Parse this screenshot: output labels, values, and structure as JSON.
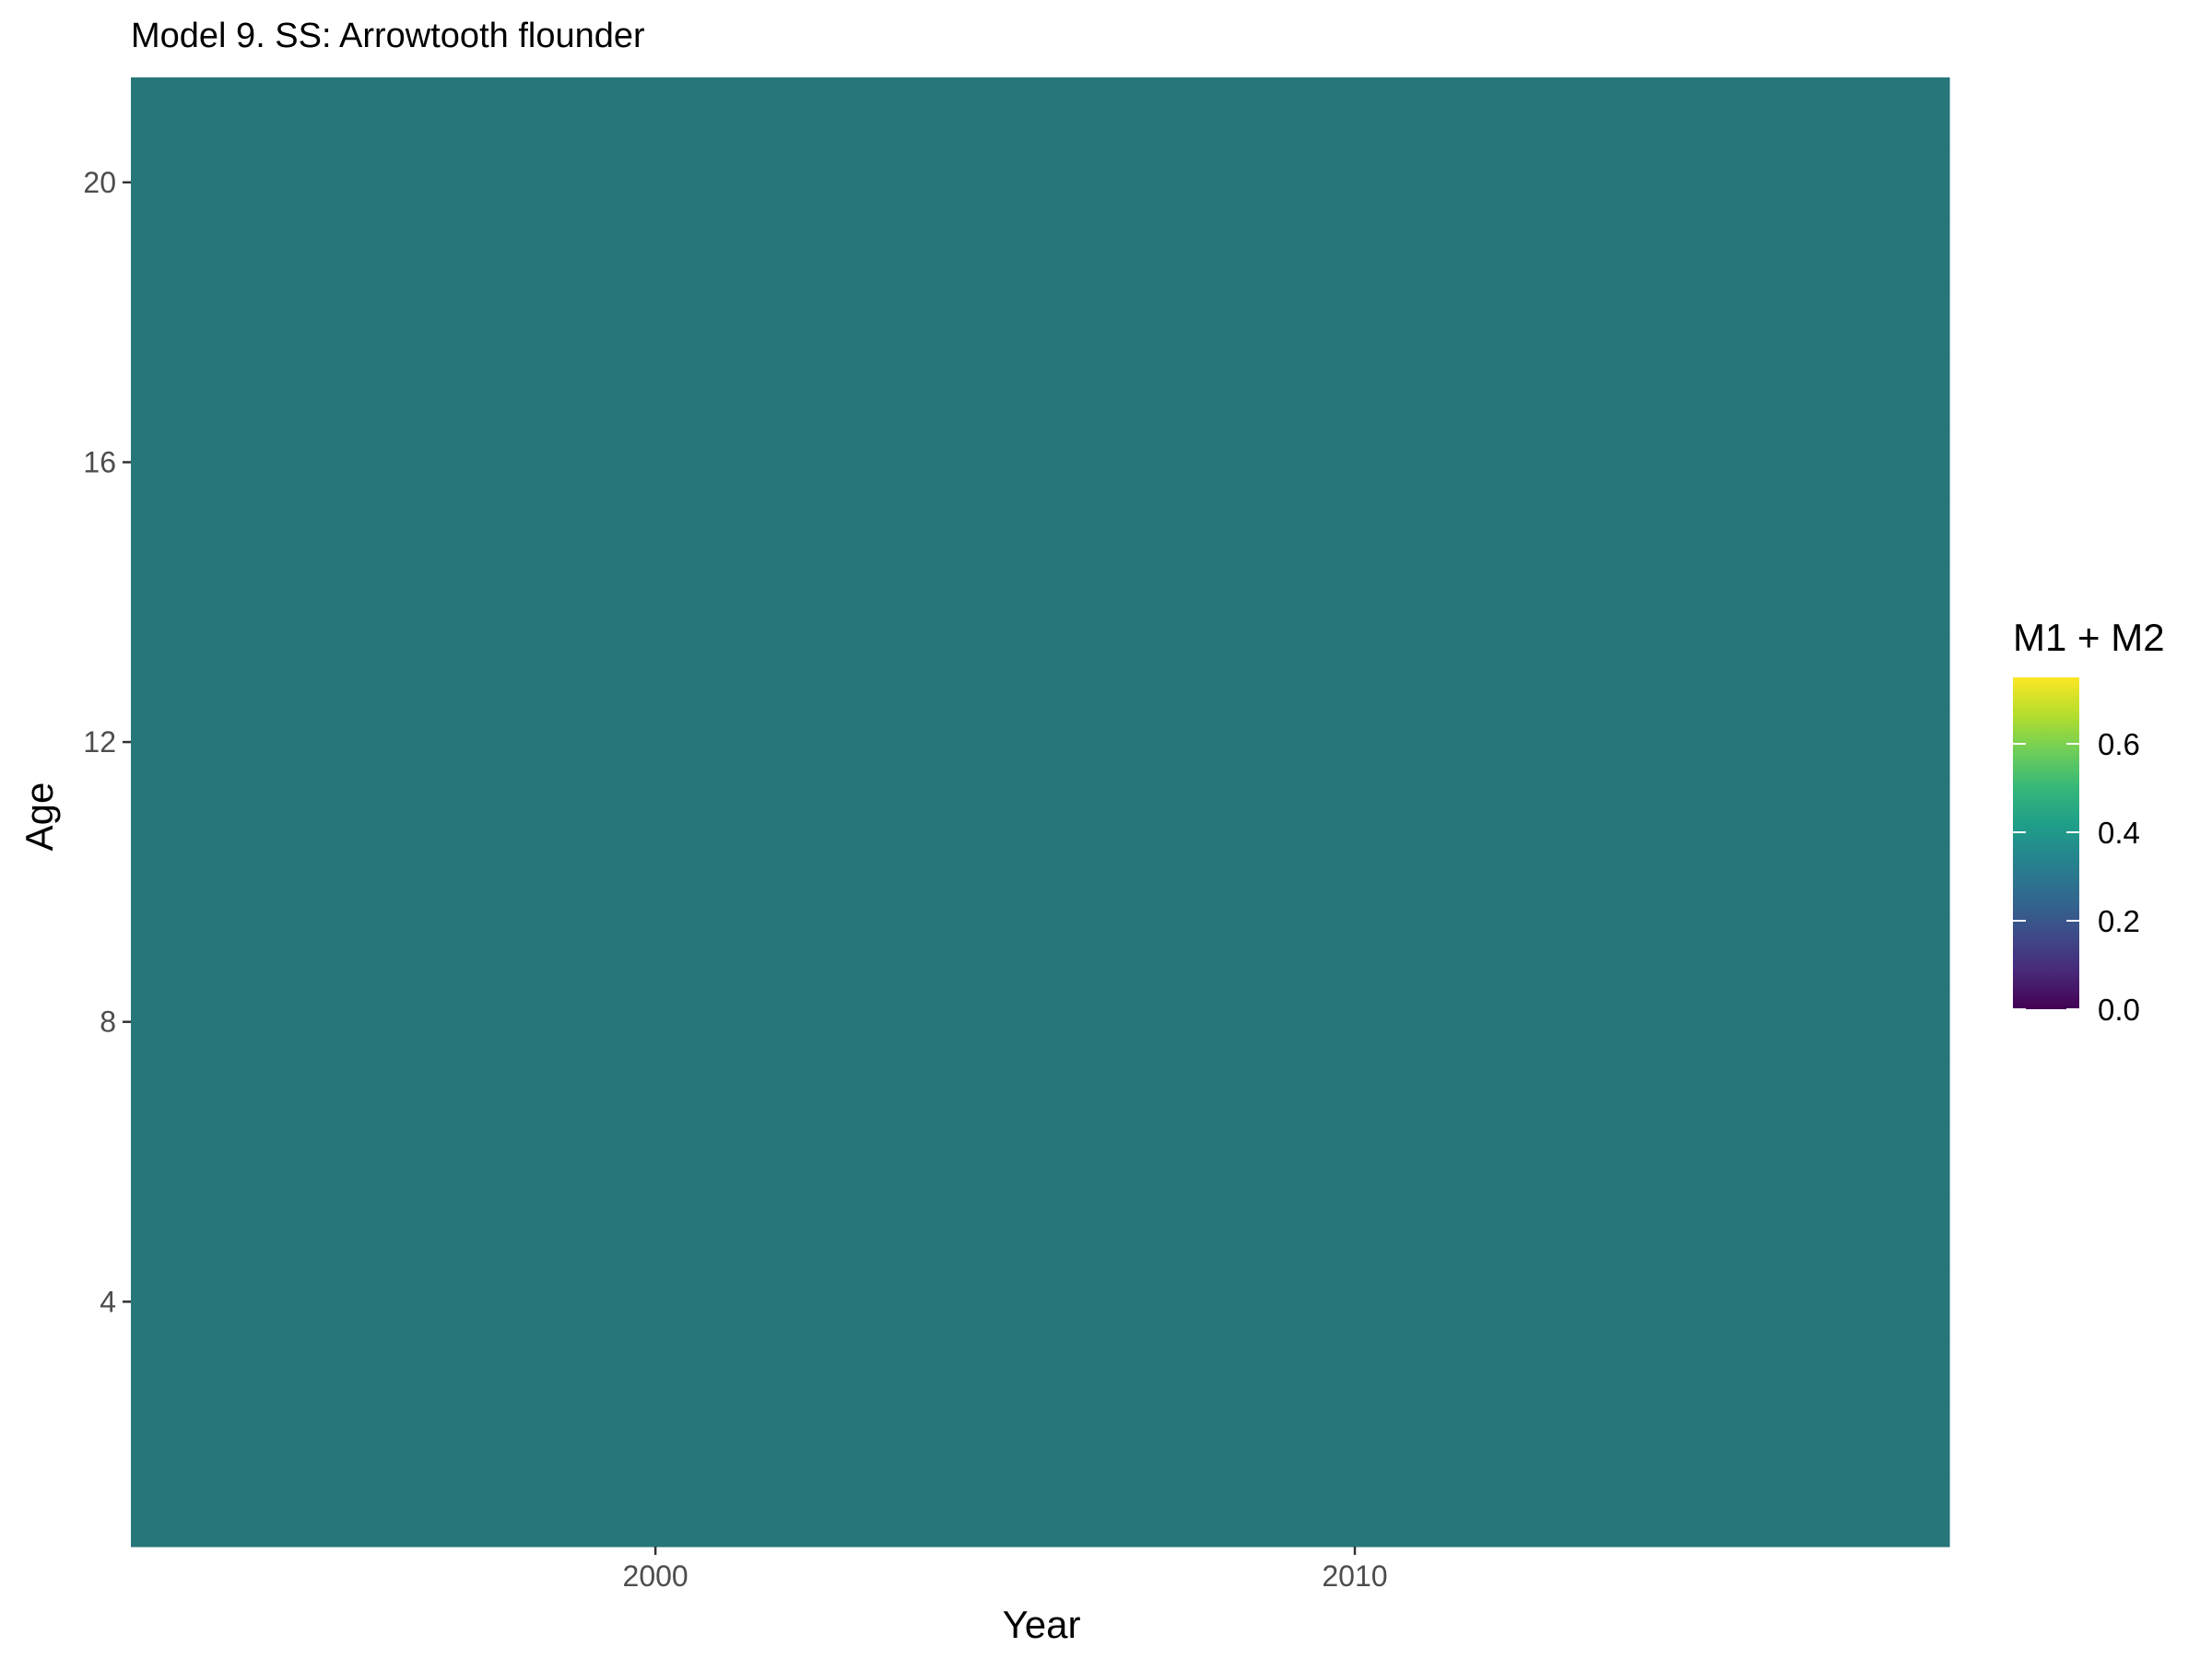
{
  "chart_data": {
    "type": "heatmap",
    "title": "Model 9. SS: Arrowtooth flounder",
    "xlabel": "Year",
    "ylabel": "Age",
    "x_ticks": [
      2000,
      2010
    ],
    "y_ticks": [
      4,
      8,
      12,
      16,
      20
    ],
    "x_range": [
      1992.5,
      2018.5
    ],
    "y_range": [
      0.5,
      21.5
    ],
    "years": [
      1993,
      2018
    ],
    "ages": [
      1,
      21
    ],
    "value": 0.37,
    "fill_color": "#277679",
    "legend": {
      "title": "M1 + M2",
      "ticks": [
        0.0,
        0.2,
        0.4,
        0.6
      ],
      "tick_labels": [
        "0.0",
        "0.2",
        "0.4",
        "0.6"
      ],
      "range": [
        0.0,
        0.75
      ],
      "palette": "viridis",
      "colors": [
        "#440154",
        "#482878",
        "#3e4a89",
        "#31688e",
        "#26828e",
        "#1f9e89",
        "#35b779",
        "#6ece58",
        "#b5de2b",
        "#fde725"
      ],
      "placement": "right"
    },
    "grid": false
  }
}
